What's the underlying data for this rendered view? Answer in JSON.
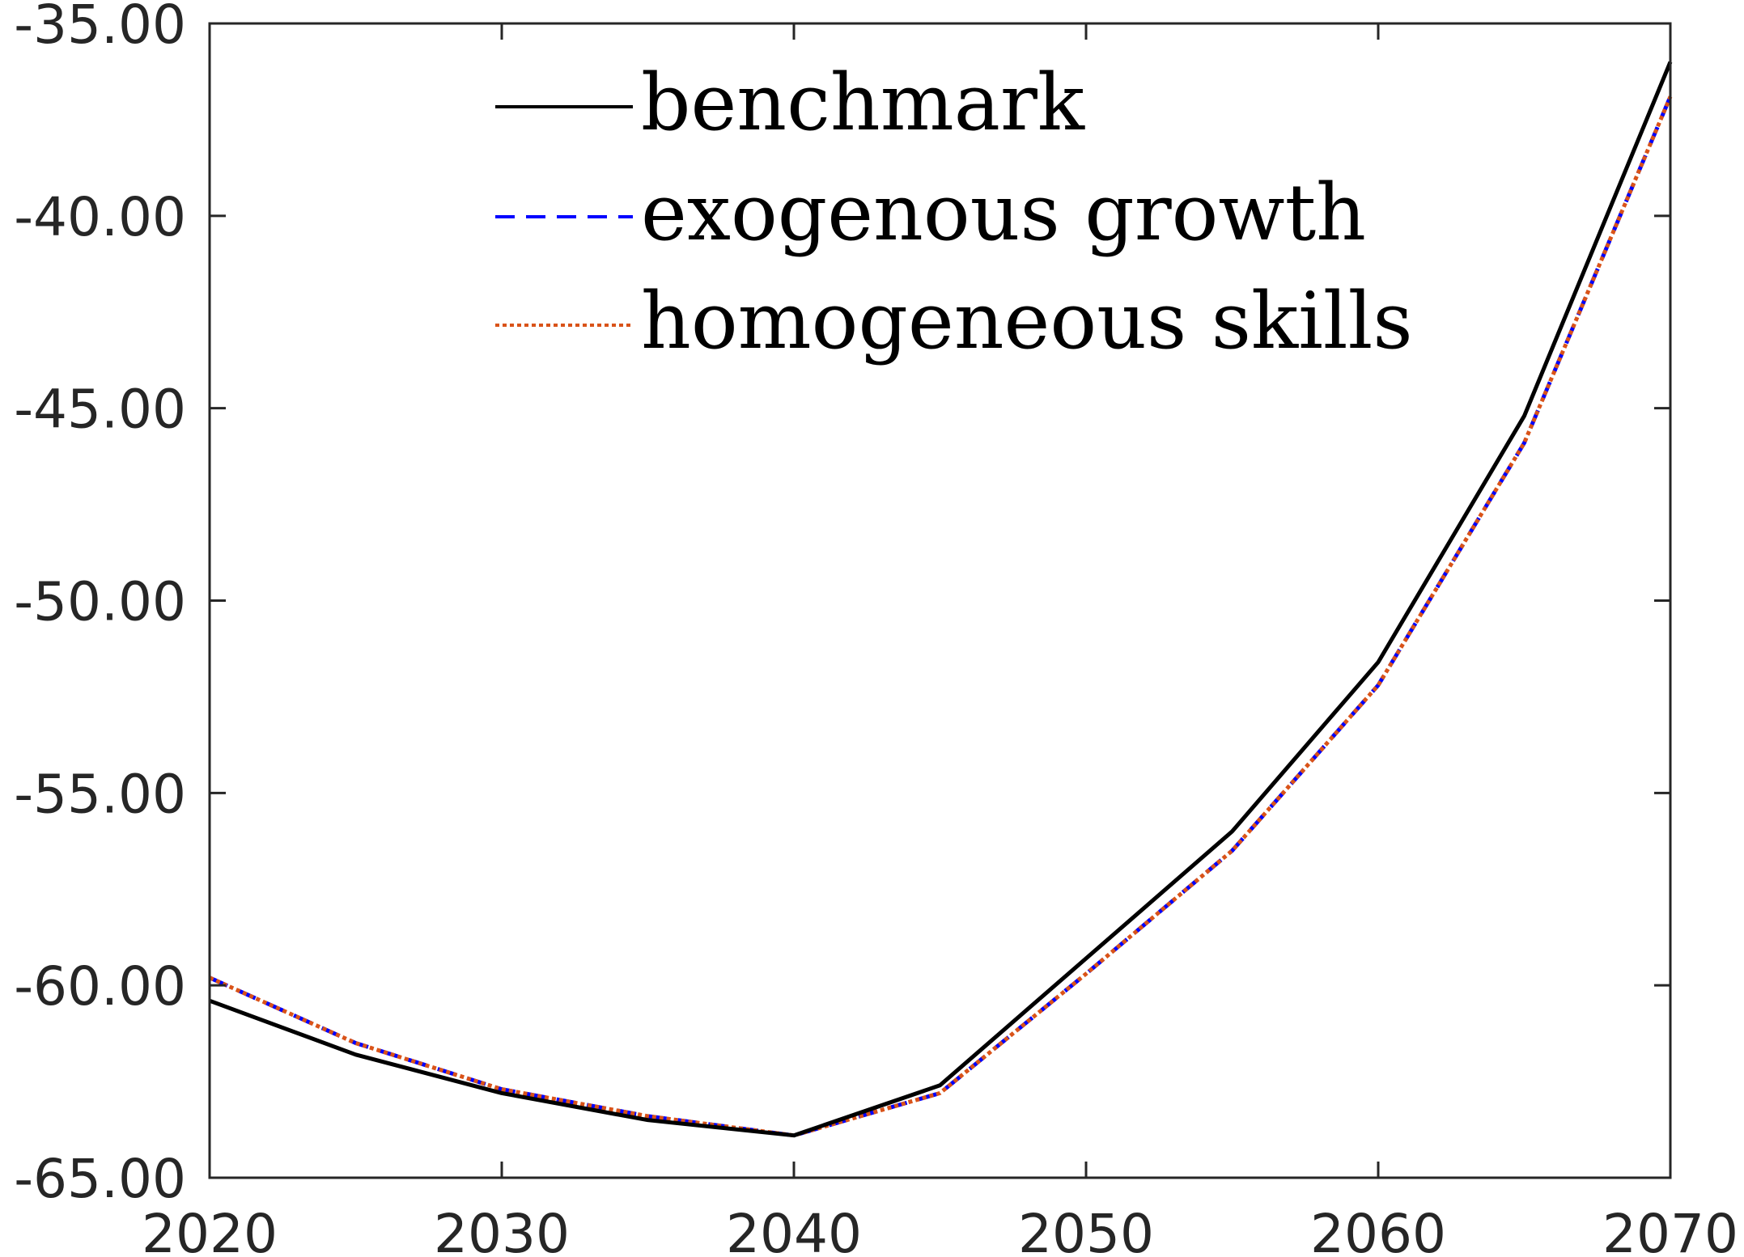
{
  "chart_data": {
    "type": "line",
    "title": "",
    "xlabel": "",
    "ylabel": "",
    "xlim": [
      2020,
      2070
    ],
    "ylim": [
      -65,
      -35
    ],
    "xticks": [
      "2020",
      "2030",
      "2040",
      "2050",
      "2060",
      "2070"
    ],
    "yticks": [
      "-35.00",
      "-40.00",
      "-45.00",
      "-50.00",
      "-55.00",
      "-60.00",
      "-65.00"
    ],
    "xtick_values": [
      2020,
      2030,
      2040,
      2050,
      2060,
      2070
    ],
    "ytick_values": [
      -35,
      -40,
      -45,
      -50,
      -55,
      -60,
      -65
    ],
    "grid": false,
    "legend_position": "top",
    "x": [
      2020,
      2025,
      2030,
      2035,
      2040,
      2045,
      2050,
      2055,
      2060,
      2065,
      2070
    ],
    "series": [
      {
        "name": "benchmark",
        "color": "#000000",
        "style": "solid",
        "values": [
          -60.4,
          -61.8,
          -62.8,
          -63.5,
          -63.9,
          -62.6,
          -59.3,
          -56.0,
          -51.6,
          -45.2,
          -36.0
        ]
      },
      {
        "name": "exogenous growth",
        "color": "#0000ff",
        "style": "dashed",
        "values": [
          -59.8,
          -61.5,
          -62.7,
          -63.4,
          -63.9,
          -62.8,
          -59.7,
          -56.5,
          -52.2,
          -45.9,
          -36.9
        ]
      },
      {
        "name": "homogeneous skills",
        "color": "#d95319",
        "style": "dotted",
        "values": [
          -59.8,
          -61.5,
          -62.7,
          -63.4,
          -63.9,
          -62.8,
          -59.7,
          -56.5,
          -52.2,
          -45.9,
          -36.9
        ]
      }
    ]
  }
}
